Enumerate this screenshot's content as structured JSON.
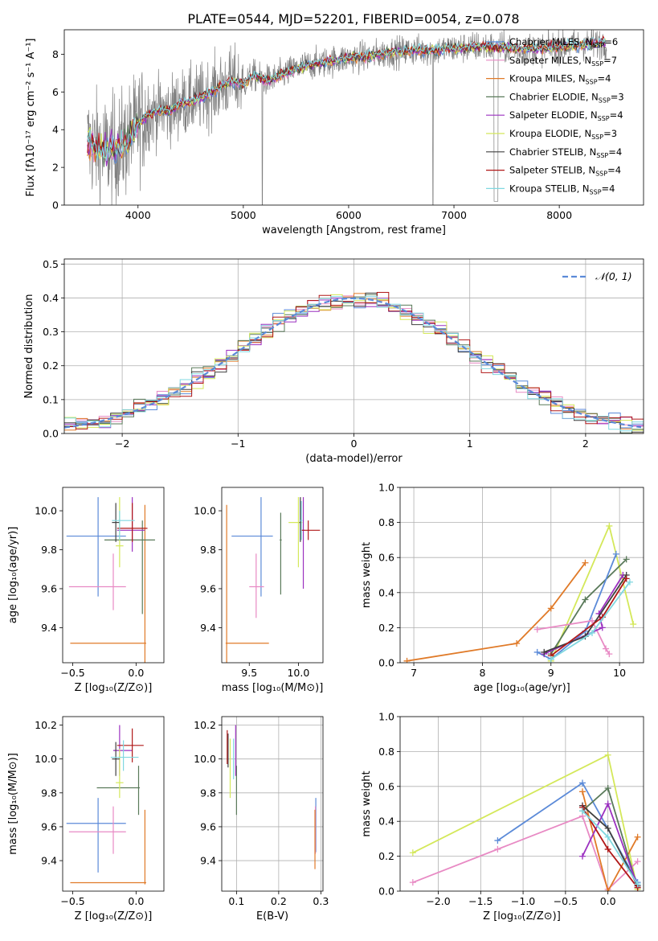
{
  "figure_title": "PLATE=0544, MJD=52201, FIBERID=0054, z=0.078",
  "colors": {
    "Chabrier MILES": "#5b8ad8",
    "Salpeter MILES": "#e88ac4",
    "Kroupa MILES": "#e07a28",
    "Chabrier ELODIE": "#5a7a5a",
    "Salpeter ELODIE": "#9b30c0",
    "Kroupa ELODIE": "#d4e85a",
    "Chabrier STELIB": "#404040",
    "Salpeter STELIB": "#b01818",
    "Kroupa STELIB": "#80d8e0",
    "data": "#808080"
  },
  "chart_data": [
    {
      "id": "spectrum",
      "type": "line",
      "title": "PLATE=0544, MJD=52201, FIBERID=0054, z=0.078",
      "xlabel": "wavelength [Angstrom, rest frame]",
      "ylabel": "Flux [fλ10⁻¹⁷ erg cm⁻² s⁻¹ A⁻¹]",
      "xlim": [
        3300,
        8800
      ],
      "ylim": [
        0,
        9.3
      ],
      "xticks": [
        4000,
        5000,
        6000,
        7000,
        8000
      ],
      "yticks": [
        0,
        2,
        4,
        6,
        8
      ],
      "grid": false,
      "legend_position": "upper right",
      "legend": [
        {
          "model": "Chabrier MILES",
          "label": "Chabrier MILES, N",
          "sub": "SSP",
          "tail": "=6"
        },
        {
          "model": "Salpeter MILES",
          "label": "Salpeter MILES, N",
          "sub": "SSP",
          "tail": "=7"
        },
        {
          "model": "Kroupa MILES",
          "label": "Kroupa MILES, N",
          "sub": "SSP",
          "tail": "=4"
        },
        {
          "model": "Chabrier ELODIE",
          "label": "Chabrier ELODIE, N",
          "sub": "SSP",
          "tail": "=3"
        },
        {
          "model": "Salpeter ELODIE",
          "label": "Salpeter ELODIE, N",
          "sub": "SSP",
          "tail": "=4"
        },
        {
          "model": "Kroupa ELODIE",
          "label": "Kroupa ELODIE, N",
          "sub": "SSP",
          "tail": "=3"
        },
        {
          "model": "Chabrier STELIB",
          "label": "Chabrier STELIB, N",
          "sub": "SSP",
          "tail": "=4"
        },
        {
          "model": "Salpeter STELIB",
          "label": "Salpeter STELIB, N",
          "sub": "SSP",
          "tail": "=4"
        },
        {
          "model": "Kroupa STELIB",
          "label": "Kroupa STELIB, N",
          "sub": "SSP",
          "tail": "=4"
        }
      ],
      "continuum": {
        "x": [
          3520,
          3600,
          3700,
          3800,
          3900,
          4000,
          4100,
          4200,
          4300,
          4400,
          4500,
          4600,
          4700,
          4800,
          4900,
          5000,
          5100,
          5200,
          5300,
          5400,
          5500,
          5600,
          5800,
          6000,
          6200,
          6400,
          6600,
          6800,
          7000,
          7200,
          7400,
          7600,
          7800,
          8000,
          8200,
          8450
        ],
        "y": [
          3.3,
          3.1,
          2.9,
          3.0,
          3.4,
          4.3,
          4.8,
          5.0,
          5.0,
          5.4,
          5.5,
          5.7,
          6.0,
          6.3,
          6.6,
          6.4,
          6.9,
          6.6,
          6.7,
          7.0,
          7.2,
          7.4,
          7.6,
          7.8,
          7.9,
          8.1,
          8.2,
          8.2,
          8.3,
          8.4,
          8.4,
          8.3,
          8.3,
          8.4,
          8.5,
          8.6
        ]
      },
      "observed_noise_amplitude": 1.3
    },
    {
      "id": "residuals",
      "type": "histogram",
      "xlabel": "(data-model)/error",
      "ylabel": "Normed distribution",
      "xlim": [
        -2.5,
        2.5
      ],
      "ylim": [
        0,
        0.515
      ],
      "xticks": [
        -2,
        -1,
        0,
        1,
        2
      ],
      "yticks": [
        0.0,
        0.1,
        0.2,
        0.3,
        0.4,
        0.5
      ],
      "grid": true,
      "legend_position": "upper right",
      "reference_curve": {
        "label": "𝒩(0, 1)",
        "mean": 0,
        "sigma": 1,
        "style": "dashed",
        "color": "#5b8ad8"
      },
      "bin_width": 0.1
    },
    {
      "id": "age-vs-Z",
      "type": "errorbar",
      "xlabel": "Z [log₁₀(Z/Z⊙)]",
      "ylabel": "age  [log₁₀(age/yr)]",
      "xlim": [
        -0.58,
        0.22
      ],
      "ylim": [
        9.22,
        10.12
      ],
      "xticks": [
        -0.5,
        0.0
      ],
      "yticks": [
        9.4,
        9.6,
        9.8,
        10.0
      ],
      "grid": false,
      "points": [
        {
          "model": "Chabrier MILES",
          "x": -0.3,
          "xerr": [
            0.25,
            0.22
          ],
          "y": 9.87,
          "yerr": [
            0.31,
            0.2
          ]
        },
        {
          "model": "Salpeter MILES",
          "x": -0.18,
          "xerr": [
            0.35,
            0.1
          ],
          "y": 9.61,
          "yerr": [
            0.12,
            0.17
          ]
        },
        {
          "model": "Kroupa MILES",
          "x": 0.07,
          "xerr": [
            0.59,
            0.01
          ],
          "y": 9.32,
          "yerr": [
            0.1,
            0.71
          ]
        },
        {
          "model": "Chabrier ELODIE",
          "x": 0.05,
          "xerr": [
            0.3,
            0.1
          ],
          "y": 9.85,
          "yerr": [
            0.38,
            0.1
          ]
        },
        {
          "model": "Salpeter ELODIE",
          "x": -0.03,
          "xerr": [
            0.12,
            0.1
          ],
          "y": 9.9,
          "yerr": [
            0.11,
            0.17
          ]
        },
        {
          "model": "Kroupa ELODIE",
          "x": -0.13,
          "xerr": [
            0.03,
            0.03
          ],
          "y": 9.82,
          "yerr": [
            0.11,
            0.25
          ]
        },
        {
          "model": "Chabrier STELIB",
          "x": -0.16,
          "xerr": [
            0.03,
            0.03
          ],
          "y": 9.94,
          "yerr": [
            0.1,
            0.1
          ]
        },
        {
          "model": "Salpeter STELIB",
          "x": -0.03,
          "xerr": [
            0.12,
            0.12
          ],
          "y": 9.91,
          "yerr": [
            0.07,
            0.13
          ]
        },
        {
          "model": "Kroupa STELIB",
          "x": -0.13,
          "xerr": [
            0.06,
            0.12
          ],
          "y": 9.95,
          "yerr": [
            0.1,
            0.05
          ]
        }
      ]
    },
    {
      "id": "age-vs-mass",
      "type": "errorbar",
      "xlabel": "mass [log₁₀(M/M⊙)]",
      "ylabel": "",
      "xlim": [
        9.22,
        10.25
      ],
      "ylim": [
        9.22,
        10.12
      ],
      "xticks": [
        9.5,
        10.0
      ],
      "yticks": [
        9.4,
        9.6,
        9.8,
        10.0
      ],
      "grid": false,
      "points": [
        {
          "model": "Chabrier MILES",
          "x": 9.62,
          "xerr": [
            0.3,
            0.12
          ],
          "y": 9.87,
          "yerr": [
            0.31,
            0.2
          ]
        },
        {
          "model": "Salpeter MILES",
          "x": 9.57,
          "xerr": [
            0.07,
            0.08
          ],
          "y": 9.61,
          "yerr": [
            0.16,
            0.17
          ]
        },
        {
          "model": "Kroupa MILES",
          "x": 9.27,
          "xerr": [
            0.01,
            0.43
          ],
          "y": 9.32,
          "yerr": [
            0.1,
            0.71
          ]
        },
        {
          "model": "Chabrier ELODIE",
          "x": 9.82,
          "xerr": [
            0.01,
            0.01
          ],
          "y": 9.85,
          "yerr": [
            0.28,
            0.14
          ]
        },
        {
          "model": "Salpeter ELODIE",
          "x": 10.05,
          "xerr": [
            0.01,
            0.01
          ],
          "y": 9.9,
          "yerr": [
            0.3,
            0.17
          ]
        },
        {
          "model": "Kroupa ELODIE",
          "x": 10.0,
          "xerr": [
            0.1,
            0.04
          ],
          "y": 9.94,
          "yerr": [
            0.23,
            0.13
          ]
        },
        {
          "model": "Chabrier STELIB",
          "x": 10.02,
          "xerr": [
            0.01,
            0.01
          ],
          "y": 9.94,
          "yerr": [
            0.1,
            0.13
          ]
        },
        {
          "model": "Salpeter STELIB",
          "x": 10.1,
          "xerr": [
            0.08,
            0.12
          ],
          "y": 9.9,
          "yerr": [
            0.05,
            0.05
          ]
        },
        {
          "model": "Kroupa STELIB",
          "x": 10.03,
          "xerr": [
            0.01,
            0.01
          ],
          "y": 9.95,
          "yerr": [
            0.1,
            0.1
          ]
        }
      ]
    },
    {
      "id": "weight-vs-age",
      "type": "line",
      "xlabel": "age  [log₁₀(age/yr)]",
      "ylabel": "mass weight",
      "xlim": [
        6.8,
        10.35
      ],
      "ylim": [
        0,
        1.0
      ],
      "xticks": [
        7,
        8,
        9,
        10
      ],
      "yticks": [
        0.0,
        0.2,
        0.4,
        0.6,
        0.8,
        1.0
      ],
      "grid": true,
      "series": [
        {
          "model": "Kroupa MILES",
          "x": [
            6.9,
            8.5,
            9.0,
            9.5
          ],
          "y": [
            0.01,
            0.11,
            0.31,
            0.57
          ]
        },
        {
          "model": "Kroupa ELODIE",
          "x": [
            9.0,
            9.85,
            10.2
          ],
          "y": [
            0.01,
            0.78,
            0.22
          ]
        },
        {
          "model": "Chabrier ELODIE",
          "x": [
            9.0,
            9.5,
            10.1
          ],
          "y": [
            0.05,
            0.36,
            0.59
          ]
        },
        {
          "model": "Chabrier MILES",
          "x": [
            8.8,
            9.0,
            9.5,
            9.95
          ],
          "y": [
            0.06,
            0.02,
            0.18,
            0.62
          ]
        },
        {
          "model": "Salpeter MILES",
          "x": [
            8.8,
            9.6,
            9.8,
            9.85
          ],
          "y": [
            0.19,
            0.24,
            0.08,
            0.05
          ]
        },
        {
          "model": "Salpeter ELODIE",
          "x": [
            8.9,
            9.75,
            9.7,
            10.05
          ],
          "y": [
            0.05,
            0.2,
            0.28,
            0.5
          ]
        },
        {
          "model": "Chabrier STELIB",
          "x": [
            8.9,
            9.5,
            10.1
          ],
          "y": [
            0.06,
            0.15,
            0.5
          ]
        },
        {
          "model": "Salpeter STELIB",
          "x": [
            9.0,
            9.75,
            10.1
          ],
          "y": [
            0.04,
            0.26,
            0.48
          ]
        },
        {
          "model": "Kroupa STELIB",
          "x": [
            9.0,
            9.6,
            10.15
          ],
          "y": [
            0.02,
            0.17,
            0.46
          ]
        }
      ]
    },
    {
      "id": "mass-vs-Z",
      "type": "errorbar",
      "xlabel": "Z [log₁₀(Z/Z⊙)]",
      "ylabel": "mass [log₁₀(M/M⊙)]",
      "xlim": [
        -0.58,
        0.22
      ],
      "ylim": [
        9.22,
        10.25
      ],
      "xticks": [
        -0.5,
        0.0
      ],
      "yticks": [
        9.4,
        9.6,
        9.8,
        10.0,
        10.2
      ],
      "grid": false,
      "points": [
        {
          "model": "Chabrier MILES",
          "x": -0.3,
          "xerr": [
            0.25,
            0.22
          ],
          "y": 9.62,
          "yerr": [
            0.29,
            0.15
          ]
        },
        {
          "model": "Salpeter MILES",
          "x": -0.18,
          "xerr": [
            0.35,
            0.1
          ],
          "y": 9.57,
          "yerr": [
            0.13,
            0.15
          ]
        },
        {
          "model": "Kroupa MILES",
          "x": 0.07,
          "xerr": [
            0.59,
            0.01
          ],
          "y": 9.27,
          "yerr": [
            0.01,
            0.43
          ]
        },
        {
          "model": "Chabrier ELODIE",
          "x": 0.02,
          "xerr": [
            0.33,
            0.01
          ],
          "y": 9.83,
          "yerr": [
            0.16,
            0.13
          ]
        },
        {
          "model": "Salpeter ELODIE",
          "x": -0.13,
          "xerr": [
            0.05,
            0.1
          ],
          "y": 10.05,
          "yerr": [
            0.15,
            0.15
          ]
        },
        {
          "model": "Kroupa ELODIE",
          "x": -0.13,
          "xerr": [
            0.03,
            0.03
          ],
          "y": 9.86,
          "yerr": [
            0.09,
            0.2
          ]
        },
        {
          "model": "Chabrier STELIB",
          "x": -0.16,
          "xerr": [
            0.03,
            0.03
          ],
          "y": 10.0,
          "yerr": [
            0.1,
            0.1
          ]
        },
        {
          "model": "Salpeter STELIB",
          "x": -0.03,
          "xerr": [
            0.12,
            0.09
          ],
          "y": 10.08,
          "yerr": [
            0.1,
            0.1
          ]
        },
        {
          "model": "Kroupa STELIB",
          "x": -0.1,
          "xerr": [
            0.1,
            0.12
          ],
          "y": 10.01,
          "yerr": [
            0.08,
            0.1
          ]
        }
      ]
    },
    {
      "id": "mass-vs-ebv",
      "type": "errorbar",
      "xlabel": "E(B-V)",
      "ylabel": "",
      "xlim": [
        0.065,
        0.305
      ],
      "ylim": [
        9.22,
        10.25
      ],
      "xticks": [
        0.1,
        0.2,
        0.3
      ],
      "yticks": [
        9.4,
        9.6,
        9.8,
        10.0,
        10.2
      ],
      "grid": true,
      "points": [
        {
          "model": "Chabrier MILES",
          "x": 0.288,
          "xerr": [
            0,
            0
          ],
          "y": 9.62,
          "yerr": [
            0.17,
            0.15
          ]
        },
        {
          "model": "Salpeter MILES",
          "x": 0.287,
          "xerr": [
            0,
            0
          ],
          "y": 9.57,
          "yerr": [
            0.13,
            0.15
          ]
        },
        {
          "model": "Kroupa MILES",
          "x": 0.286,
          "xerr": [
            0,
            0
          ],
          "y": 9.5,
          "yerr": [
            0.15,
            0.2
          ]
        },
        {
          "model": "Chabrier ELODIE",
          "x": 0.1,
          "xerr": [
            0,
            0
          ],
          "y": 9.83,
          "yerr": [
            0.16,
            0.13
          ]
        },
        {
          "model": "Salpeter ELODIE",
          "x": 0.098,
          "xerr": [
            0,
            0
          ],
          "y": 10.05,
          "yerr": [
            0.15,
            0.15
          ]
        },
        {
          "model": "Kroupa ELODIE",
          "x": 0.085,
          "xerr": [
            0,
            0
          ],
          "y": 9.92,
          "yerr": [
            0.15,
            0.2
          ]
        },
        {
          "model": "Chabrier STELIB",
          "x": 0.08,
          "xerr": [
            0,
            0
          ],
          "y": 10.05,
          "yerr": [
            0.1,
            0.1
          ]
        },
        {
          "model": "Salpeter STELIB",
          "x": 0.078,
          "xerr": [
            0,
            0
          ],
          "y": 10.07,
          "yerr": [
            0.1,
            0.1
          ]
        },
        {
          "model": "Kroupa STELIB",
          "x": 0.093,
          "xerr": [
            0,
            0
          ],
          "y": 10.0,
          "yerr": [
            0.12,
            0.12
          ]
        }
      ]
    },
    {
      "id": "weight-vs-Z",
      "type": "line",
      "xlabel": "Z [log₁₀(Z/Z⊙)]",
      "ylabel": "mass weight",
      "xlim": [
        -2.45,
        0.42
      ],
      "ylim": [
        0,
        1.0
      ],
      "xticks": [
        -2.0,
        -1.5,
        -1.0,
        -0.5,
        0.0
      ],
      "yticks": [
        0.0,
        0.2,
        0.4,
        0.6,
        0.8,
        1.0
      ],
      "grid": true,
      "series": [
        {
          "model": "Kroupa ELODIE",
          "x": [
            -2.3,
            0.0,
            0.35
          ],
          "y": [
            0.22,
            0.78,
            0.01
          ]
        },
        {
          "model": "Chabrier MILES",
          "x": [
            -1.3,
            -0.3,
            0.35
          ],
          "y": [
            0.29,
            0.62,
            0.05
          ]
        },
        {
          "model": "Salpeter MILES",
          "x": [
            -2.3,
            -1.3,
            -0.3,
            0.0,
            0.35
          ],
          "y": [
            0.05,
            0.24,
            0.43,
            0.01,
            0.17
          ]
        },
        {
          "model": "Kroupa MILES",
          "x": [
            -0.3,
            0.0,
            0.35
          ],
          "y": [
            0.57,
            0.0,
            0.31
          ]
        },
        {
          "model": "Chabrier ELODIE",
          "x": [
            -0.3,
            0.0,
            0.35
          ],
          "y": [
            0.46,
            0.59,
            0.02
          ]
        },
        {
          "model": "Salpeter ELODIE",
          "x": [
            -0.3,
            0.0,
            0.35
          ],
          "y": [
            0.2,
            0.5,
            0.03
          ]
        },
        {
          "model": "Chabrier STELIB",
          "x": [
            -0.3,
            0.0,
            0.35
          ],
          "y": [
            0.49,
            0.36,
            0.03
          ]
        },
        {
          "model": "Salpeter STELIB",
          "x": [
            -0.3,
            0.0,
            0.35
          ],
          "y": [
            0.48,
            0.24,
            0.02
          ]
        },
        {
          "model": "Kroupa STELIB",
          "x": [
            -0.3,
            0.0,
            0.35
          ],
          "y": [
            0.46,
            0.31,
            0.04
          ]
        }
      ]
    }
  ]
}
